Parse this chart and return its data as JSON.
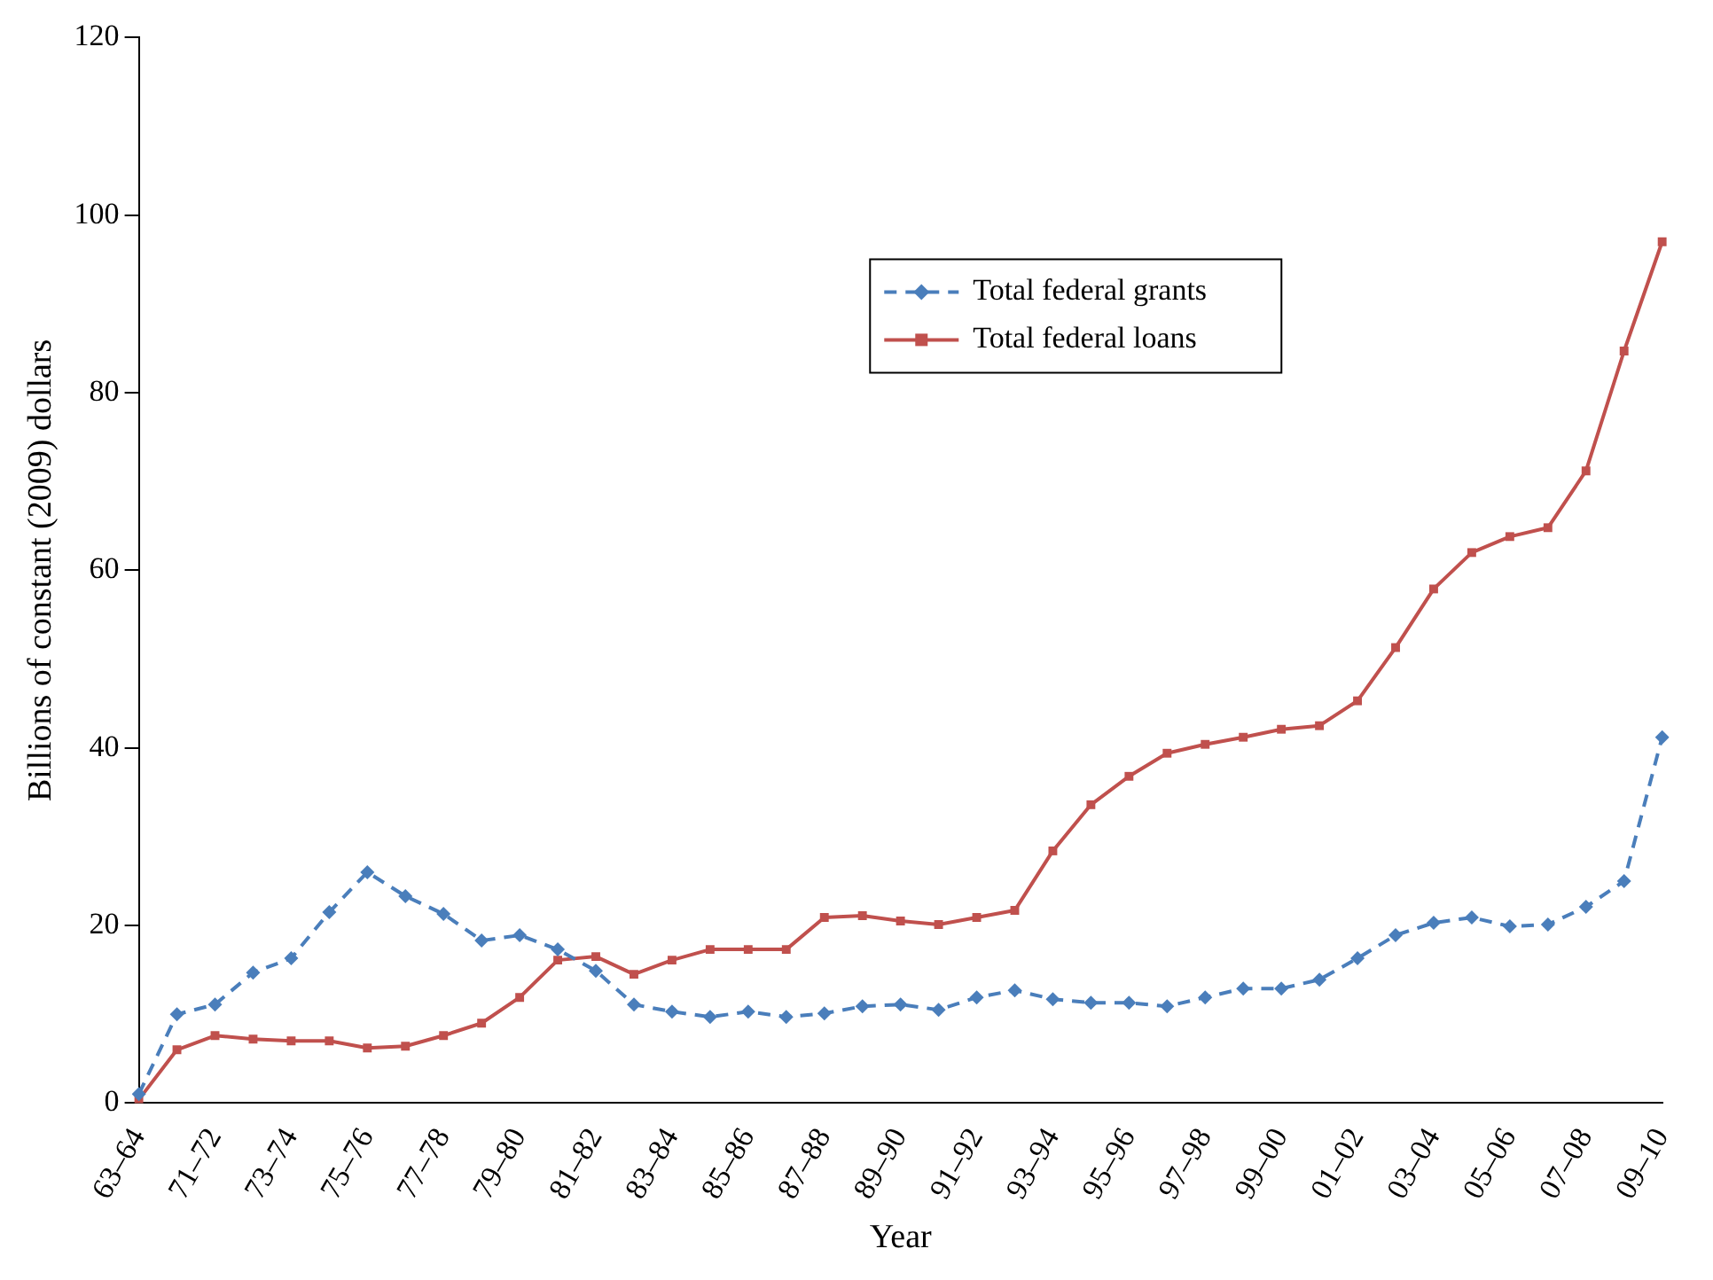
{
  "chart_data": {
    "type": "line",
    "xlabel": "Year",
    "ylabel": "Billions of constant (2009) dollars",
    "categories": [
      "63–64",
      null,
      "71–72",
      null,
      "73–74",
      null,
      "75–76",
      null,
      "77–78",
      null,
      "79–80",
      null,
      "81–82",
      null,
      "83–84",
      null,
      "85–86",
      null,
      "87–88",
      null,
      "89–90",
      null,
      "91–92",
      null,
      "93–94",
      null,
      "95–96",
      null,
      "97–98",
      null,
      "99–00",
      null,
      "01–02",
      null,
      "03–04",
      null,
      "05–06",
      null,
      "07–08",
      null,
      "09–10"
    ],
    "series": [
      {
        "name": "Total federal grants",
        "color": "#4a7ebb",
        "marker": "diamond",
        "line_style": "dashed",
        "values": [
          1,
          10,
          11.1,
          14.7,
          16.3,
          21.5,
          26,
          23.3,
          21.3,
          18.3,
          18.9,
          17.3,
          14.9,
          11.1,
          10.3,
          9.7,
          10.3,
          9.7,
          10.1,
          10.9,
          11.1,
          10.5,
          11.9,
          12.7,
          11.7,
          11.3,
          11.3,
          10.9,
          11.9,
          12.9,
          12.9,
          13.9,
          16.3,
          18.9,
          20.3,
          20.9,
          19.9,
          20.1,
          22.1,
          25,
          41.2
        ]
      },
      {
        "name": "Total federal loans",
        "color": "#c0504d",
        "marker": "square",
        "line_style": "solid",
        "values": [
          0.4,
          6,
          7.6,
          7.2,
          7,
          7,
          6.2,
          6.4,
          7.6,
          9,
          11.9,
          16.1,
          16.5,
          14.5,
          16.1,
          17.3,
          17.3,
          17.3,
          20.9,
          21.1,
          20.5,
          20.1,
          20.9,
          21.7,
          28.4,
          33.6,
          36.8,
          39.4,
          40.4,
          41.2,
          42.1,
          42.5,
          45.3,
          51.3,
          57.9,
          62,
          63.8,
          64.8,
          71.2,
          84.7,
          97
        ]
      }
    ],
    "ylim": [
      0,
      120
    ],
    "yticks": [
      0,
      20,
      40,
      60,
      80,
      100,
      120
    ],
    "grid": false,
    "legend": "top right"
  }
}
